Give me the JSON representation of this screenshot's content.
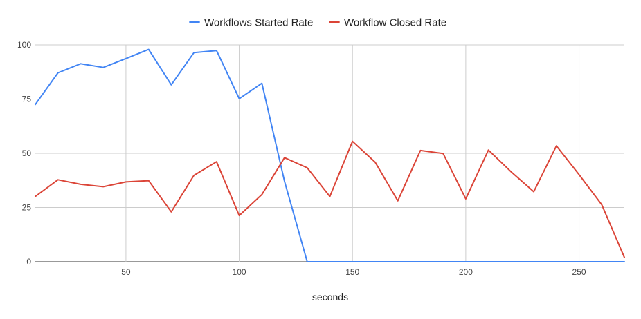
{
  "chart_data": {
    "type": "line",
    "title": "",
    "xlabel": "seconds",
    "ylabel": "",
    "xlim": [
      10,
      270
    ],
    "ylim": [
      0,
      100
    ],
    "x_ticks": [
      50,
      100,
      150,
      200,
      250
    ],
    "y_ticks": [
      0,
      25,
      50,
      75,
      100
    ],
    "grid": true,
    "legend_position": "top",
    "series": [
      {
        "name": "Workflows Started Rate",
        "color": "#4285f4",
        "points": [
          [
            10,
            72.5
          ],
          [
            20,
            87.1
          ],
          [
            30,
            91.3
          ],
          [
            40,
            89.6
          ],
          [
            50,
            93.7
          ],
          [
            60,
            97.9
          ],
          [
            70,
            81.6
          ],
          [
            80,
            96.4
          ],
          [
            90,
            97.4
          ],
          [
            100,
            75.2
          ],
          [
            110,
            82.3
          ],
          [
            120,
            37.1
          ],
          [
            130,
            0
          ],
          [
            140,
            0
          ],
          [
            150,
            0
          ],
          [
            160,
            0
          ],
          [
            170,
            0
          ],
          [
            180,
            0
          ],
          [
            190,
            0
          ],
          [
            200,
            0
          ],
          [
            210,
            0
          ],
          [
            220,
            0
          ],
          [
            230,
            0
          ],
          [
            240,
            0
          ],
          [
            250,
            0
          ],
          [
            260,
            0
          ],
          [
            270,
            0
          ]
        ]
      },
      {
        "name": "Workflow Closed Rate",
        "color": "#db4437",
        "points": [
          [
            10,
            30.1
          ],
          [
            20,
            37.8
          ],
          [
            30,
            35.7
          ],
          [
            40,
            34.6
          ],
          [
            50,
            36.8
          ],
          [
            60,
            37.4
          ],
          [
            70,
            23.0
          ],
          [
            80,
            39.8
          ],
          [
            90,
            46.1
          ],
          [
            100,
            21.3
          ],
          [
            110,
            31.0
          ],
          [
            120,
            48.0
          ],
          [
            130,
            43.3
          ],
          [
            140,
            30.1
          ],
          [
            150,
            55.5
          ],
          [
            160,
            45.9
          ],
          [
            170,
            28.1
          ],
          [
            180,
            51.3
          ],
          [
            190,
            49.9
          ],
          [
            200,
            29.0
          ],
          [
            210,
            51.5
          ],
          [
            220,
            41.5
          ],
          [
            230,
            32.3
          ],
          [
            240,
            53.4
          ],
          [
            250,
            40.2
          ],
          [
            260,
            26.3
          ],
          [
            270,
            2.0
          ]
        ]
      }
    ]
  }
}
